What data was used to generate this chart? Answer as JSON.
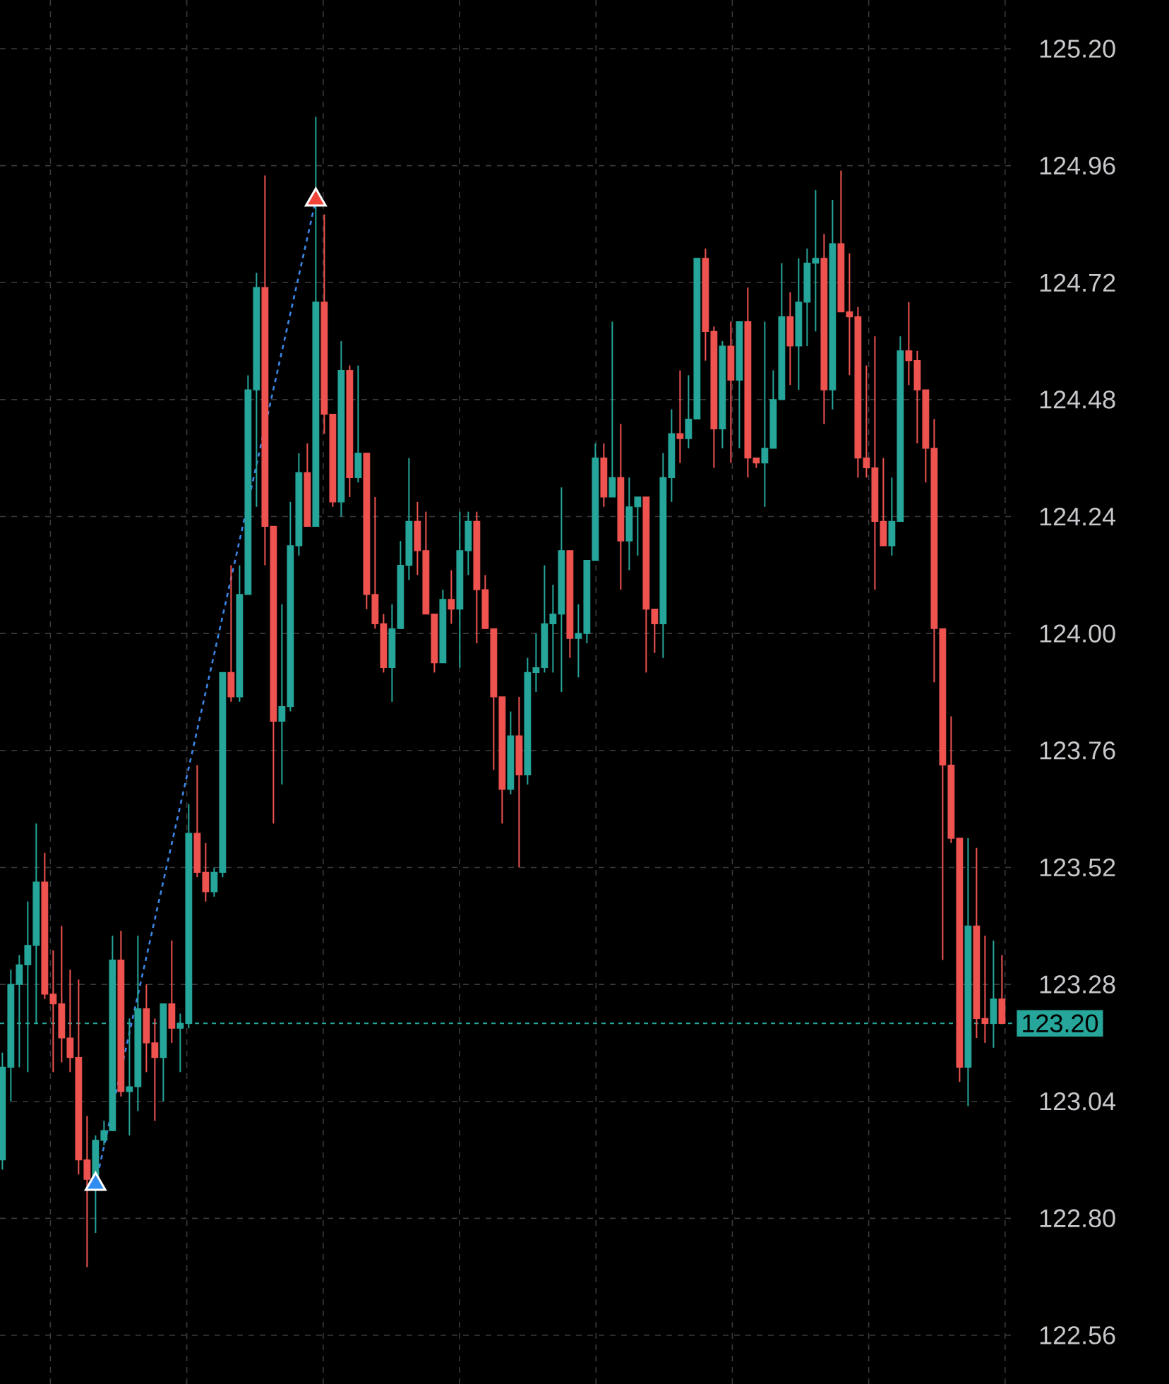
{
  "chart_data": {
    "type": "candlestick",
    "categories": [
      null,
      null,
      null,
      null,
      null,
      null,
      null,
      null,
      null,
      null,
      null,
      null,
      null,
      null,
      null,
      null,
      null,
      null,
      null,
      null,
      null,
      null,
      null,
      null,
      null,
      null,
      null,
      null,
      null,
      null,
      null,
      null,
      null,
      null,
      null,
      null,
      null,
      null,
      null,
      null,
      null,
      null,
      null,
      null,
      null,
      null,
      null,
      null,
      null,
      null,
      null,
      null,
      null,
      null,
      null,
      null,
      null,
      null,
      null,
      null,
      null,
      null,
      null,
      null,
      null,
      null,
      null,
      null,
      null,
      null,
      null,
      null,
      null,
      null,
      null,
      null,
      null,
      null,
      null,
      null,
      null,
      null,
      null,
      null,
      null,
      null,
      null,
      null,
      null,
      null,
      null,
      null,
      null,
      null,
      null,
      null,
      null,
      null,
      null,
      null,
      null,
      null,
      null,
      null,
      null,
      null,
      null,
      null,
      null,
      null,
      null,
      null,
      null,
      null,
      null,
      null,
      null,
      null,
      null
    ],
    "ohlc": [
      [
        122.92,
        123.14,
        122.9,
        123.11
      ],
      [
        123.11,
        123.31,
        123.04,
        123.28
      ],
      [
        123.28,
        123.34,
        123.11,
        123.32
      ],
      [
        123.32,
        123.45,
        123.1,
        123.36
      ],
      [
        123.36,
        123.61,
        123.2,
        123.49
      ],
      [
        123.49,
        123.55,
        123.25,
        123.26
      ],
      [
        123.26,
        123.35,
        123.1,
        123.24
      ],
      [
        123.24,
        123.4,
        123.12,
        123.17
      ],
      [
        123.17,
        123.31,
        123.1,
        123.13
      ],
      [
        123.13,
        123.29,
        122.89,
        122.92
      ],
      [
        122.92,
        123.01,
        122.7,
        122.88
      ],
      [
        122.88,
        122.97,
        122.77,
        122.96
      ],
      [
        122.96,
        123.0,
        122.95,
        122.98
      ],
      [
        122.98,
        123.38,
        122.98,
        123.33
      ],
      [
        123.33,
        123.39,
        123.05,
        123.06
      ],
      [
        123.06,
        123.21,
        122.97,
        123.07
      ],
      [
        123.07,
        123.38,
        123.02,
        123.23
      ],
      [
        123.23,
        123.28,
        123.1,
        123.16
      ],
      [
        123.16,
        123.21,
        123.0,
        123.13
      ],
      [
        123.13,
        123.24,
        123.04,
        123.24
      ],
      [
        123.24,
        123.37,
        123.16,
        123.19
      ],
      [
        123.19,
        123.22,
        123.1,
        123.2
      ],
      [
        123.2,
        123.65,
        123.19,
        123.59
      ],
      [
        123.59,
        123.73,
        123.5,
        123.51
      ],
      [
        123.51,
        123.57,
        123.45,
        123.47
      ],
      [
        123.47,
        123.52,
        123.46,
        123.51
      ],
      [
        123.51,
        123.92,
        123.5,
        123.92
      ],
      [
        123.92,
        124.14,
        123.86,
        123.87
      ],
      [
        123.87,
        124.14,
        123.86,
        124.08
      ],
      [
        124.08,
        124.53,
        124.08,
        124.5
      ],
      [
        124.5,
        124.74,
        124.26,
        124.71
      ],
      [
        124.71,
        124.94,
        124.14,
        124.22
      ],
      [
        124.22,
        124.22,
        123.61,
        123.82
      ],
      [
        123.82,
        124.06,
        123.69,
        123.85
      ],
      [
        123.85,
        124.27,
        123.84,
        124.18
      ],
      [
        124.18,
        124.37,
        124.16,
        124.33
      ],
      [
        124.33,
        124.39,
        124.22,
        124.22
      ],
      [
        124.22,
        125.06,
        124.22,
        124.68
      ],
      [
        124.68,
        124.86,
        124.41,
        124.45
      ],
      [
        124.45,
        124.45,
        124.26,
        124.27
      ],
      [
        124.27,
        124.6,
        124.24,
        124.54
      ],
      [
        124.54,
        124.55,
        124.28,
        124.32
      ],
      [
        124.32,
        124.55,
        124.31,
        124.37
      ],
      [
        124.37,
        124.37,
        124.05,
        124.08
      ],
      [
        124.08,
        124.28,
        124.01,
        124.02
      ],
      [
        124.02,
        124.04,
        123.92,
        123.93
      ],
      [
        123.93,
        124.06,
        123.86,
        124.01
      ],
      [
        124.01,
        124.19,
        124.01,
        124.14
      ],
      [
        124.14,
        124.36,
        124.11,
        124.23
      ],
      [
        124.23,
        124.27,
        124.12,
        124.17
      ],
      [
        124.17,
        124.25,
        124.04,
        124.04
      ],
      [
        124.04,
        124.04,
        123.92,
        123.94
      ],
      [
        123.94,
        124.09,
        123.94,
        124.07
      ],
      [
        124.07,
        124.13,
        124.02,
        124.05
      ],
      [
        124.05,
        124.25,
        123.93,
        124.17
      ],
      [
        124.17,
        124.25,
        124.12,
        124.23
      ],
      [
        124.23,
        124.25,
        123.98,
        124.09
      ],
      [
        124.09,
        124.12,
        124.01,
        124.01
      ],
      [
        124.01,
        124.01,
        123.72,
        123.87
      ],
      [
        123.87,
        123.87,
        123.61,
        123.68
      ],
      [
        123.68,
        123.84,
        123.67,
        123.79
      ],
      [
        123.79,
        123.87,
        123.52,
        123.71
      ],
      [
        123.71,
        123.95,
        123.69,
        123.92
      ],
      [
        123.92,
        124.0,
        123.88,
        123.93
      ],
      [
        123.93,
        124.14,
        123.92,
        124.02
      ],
      [
        124.02,
        124.1,
        123.92,
        124.04
      ],
      [
        124.04,
        124.3,
        123.88,
        124.17
      ],
      [
        124.17,
        124.17,
        123.95,
        123.99
      ],
      [
        123.99,
        124.06,
        123.91,
        124.0
      ],
      [
        124.0,
        124.15,
        123.98,
        124.15
      ],
      [
        124.15,
        124.39,
        124.15,
        124.36
      ],
      [
        124.36,
        124.39,
        124.26,
        124.28
      ],
      [
        124.28,
        124.64,
        124.28,
        124.32
      ],
      [
        124.32,
        124.43,
        124.09,
        124.19
      ],
      [
        124.19,
        124.32,
        124.13,
        124.26
      ],
      [
        124.26,
        124.28,
        124.16,
        124.28
      ],
      [
        124.28,
        124.28,
        123.92,
        124.05
      ],
      [
        124.05,
        124.05,
        123.96,
        124.02
      ],
      [
        124.02,
        124.37,
        123.95,
        124.32
      ],
      [
        124.32,
        124.46,
        124.27,
        124.41
      ],
      [
        124.41,
        124.54,
        124.35,
        124.4
      ],
      [
        124.4,
        124.53,
        124.38,
        124.44
      ],
      [
        124.44,
        124.77,
        124.44,
        124.77
      ],
      [
        124.77,
        124.79,
        124.56,
        124.62
      ],
      [
        124.62,
        124.63,
        124.34,
        124.42
      ],
      [
        124.42,
        124.6,
        124.38,
        124.59
      ],
      [
        124.59,
        124.64,
        124.35,
        124.52
      ],
      [
        124.52,
        124.64,
        124.38,
        124.64
      ],
      [
        124.64,
        124.71,
        124.32,
        124.36
      ],
      [
        124.36,
        124.36,
        124.34,
        124.35
      ],
      [
        124.35,
        124.64,
        124.26,
        124.38
      ],
      [
        124.38,
        124.54,
        124.38,
        124.48
      ],
      [
        124.48,
        124.76,
        124.48,
        124.65
      ],
      [
        124.65,
        124.7,
        124.51,
        124.59
      ],
      [
        124.59,
        124.77,
        124.5,
        124.68
      ],
      [
        124.68,
        124.79,
        124.59,
        124.76
      ],
      [
        124.76,
        124.91,
        124.62,
        124.77
      ],
      [
        124.77,
        124.82,
        124.43,
        124.5
      ],
      [
        124.5,
        124.89,
        124.46,
        124.8
      ],
      [
        124.8,
        124.95,
        124.66,
        124.66
      ],
      [
        124.66,
        124.78,
        124.53,
        124.65
      ],
      [
        124.65,
        124.67,
        124.32,
        124.36
      ],
      [
        124.36,
        124.55,
        124.32,
        124.34
      ],
      [
        124.34,
        124.61,
        124.09,
        124.23
      ],
      [
        124.23,
        124.36,
        124.18,
        124.18
      ],
      [
        124.18,
        124.32,
        124.16,
        124.23
      ],
      [
        124.23,
        124.61,
        124.23,
        124.58
      ],
      [
        124.58,
        124.68,
        124.51,
        124.56
      ],
      [
        124.56,
        124.58,
        124.39,
        124.5
      ],
      [
        124.5,
        124.5,
        124.31,
        124.38
      ],
      [
        124.38,
        124.44,
        123.9,
        124.01
      ],
      [
        124.01,
        124.01,
        123.33,
        123.73
      ],
      [
        123.73,
        123.83,
        123.57,
        123.58
      ],
      [
        123.58,
        123.58,
        123.08,
        123.11
      ],
      [
        123.11,
        123.58,
        123.03,
        123.4
      ],
      [
        123.4,
        123.56,
        123.17,
        123.21
      ],
      [
        123.21,
        123.38,
        123.16,
        123.2
      ],
      [
        123.2,
        123.37,
        123.15,
        123.25
      ],
      [
        123.25,
        123.34,
        123.2,
        123.2
      ]
    ],
    "colors": [
      "#26a69a",
      "#26a69a",
      "#26a69a",
      "#26a69a",
      "#26a69a",
      "#ef5350",
      "#ef5350",
      "#ef5350",
      "#ef5350",
      "#ef5350",
      "#ef5350",
      "#26a69a",
      "#26a69a",
      "#26a69a",
      "#ef5350",
      "#26a69a",
      "#26a69a",
      "#ef5350",
      "#ef5350",
      "#26a69a",
      "#ef5350",
      "#26a69a",
      "#26a69a",
      "#ef5350",
      "#ef5350",
      "#26a69a",
      "#26a69a",
      "#ef5350",
      "#26a69a",
      "#26a69a",
      "#26a69a",
      "#ef5350",
      "#ef5350",
      "#26a69a",
      "#26a69a",
      "#26a69a",
      "#ef5350",
      "#26a69a",
      "#ef5350",
      "#ef5350",
      "#26a69a",
      "#ef5350",
      "#26a69a",
      "#ef5350",
      "#ef5350",
      "#ef5350",
      "#26a69a",
      "#26a69a",
      "#26a69a",
      "#ef5350",
      "#ef5350",
      "#ef5350",
      "#26a69a",
      "#ef5350",
      "#26a69a",
      "#26a69a",
      "#ef5350",
      "#ef5350",
      "#ef5350",
      "#ef5350",
      "#26a69a",
      "#ef5350",
      "#26a69a",
      "#26a69a",
      "#26a69a",
      "#26a69a",
      "#26a69a",
      "#ef5350",
      "#26a69a",
      "#26a69a",
      "#26a69a",
      "#ef5350",
      "#26a69a",
      "#ef5350",
      "#26a69a",
      "#26a69a",
      "#ef5350",
      "#ef5350",
      "#26a69a",
      "#26a69a",
      "#ef5350",
      "#26a69a",
      "#26a69a",
      "#ef5350",
      "#ef5350",
      "#26a69a",
      "#ef5350",
      "#26a69a",
      "#ef5350",
      "#ef5350",
      "#26a69a",
      "#26a69a",
      "#26a69a",
      "#ef5350",
      "#26a69a",
      "#26a69a",
      "#26a69a",
      "#ef5350",
      "#26a69a",
      "#ef5350",
      "#ef5350",
      "#ef5350",
      "#ef5350",
      "#ef5350",
      "#ef5350",
      "#26a69a",
      "#26a69a",
      "#ef5350",
      "#ef5350",
      "#ef5350",
      "#ef5350",
      "#ef5350",
      "#ef5350",
      "#ef5350",
      "#26a69a",
      "#ef5350",
      "#ef5350",
      "#26a69a",
      "#ef5350"
    ],
    "series": [
      {
        "type": "line",
        "values": [
          null,
          null,
          null,
          null,
          null,
          null,
          null,
          null,
          null,
          null,
          null,
          122.87,
          null,
          null,
          null,
          null,
          null,
          null,
          null,
          null,
          null,
          null,
          null,
          null,
          null,
          null,
          null,
          null,
          null,
          null,
          null,
          null,
          null,
          null,
          null,
          null,
          null,
          124.89,
          null,
          null,
          null,
          null,
          null,
          null,
          null,
          null,
          null,
          null,
          null,
          null,
          null,
          null,
          null,
          null,
          null,
          null,
          null,
          null,
          null,
          null,
          null,
          null,
          null,
          null,
          null,
          null,
          null,
          null,
          null,
          null,
          null,
          null,
          null,
          null,
          null,
          null,
          null,
          null,
          null,
          null,
          null,
          null,
          null,
          null,
          null,
          null,
          null,
          null,
          null,
          null,
          null,
          null,
          null,
          null,
          null,
          null,
          null,
          null,
          null,
          null,
          null,
          null,
          null,
          null,
          null,
          null,
          null,
          null,
          null,
          null,
          null,
          null,
          null,
          null,
          null,
          null,
          null,
          null,
          null
        ],
        "color": "#3d86e6",
        "line_style": "dashed"
      },
      {
        "type": "scatter",
        "values": [
          null,
          null,
          null,
          null,
          null,
          null,
          null,
          null,
          null,
          null,
          null,
          122.87,
          null,
          null,
          null,
          null,
          null,
          null,
          null,
          null,
          null,
          null,
          null,
          null,
          null,
          null,
          null,
          null,
          null,
          null,
          null,
          null,
          null,
          null,
          null,
          null,
          null,
          null,
          null,
          null,
          null,
          null,
          null,
          null,
          null,
          null,
          null,
          null,
          null,
          null,
          null,
          null,
          null,
          null,
          null,
          null,
          null,
          null,
          null,
          null,
          null,
          null,
          null,
          null,
          null,
          null,
          null,
          null,
          null,
          null,
          null,
          null,
          null,
          null,
          null,
          null,
          null,
          null,
          null,
          null,
          null,
          null,
          null,
          null,
          null,
          null,
          null,
          null,
          null,
          null,
          null,
          null,
          null,
          null,
          null,
          null,
          null,
          null,
          null,
          null,
          null,
          null,
          null,
          null,
          null,
          null,
          null,
          null,
          null,
          null,
          null,
          null,
          null,
          null,
          null,
          null,
          null,
          null,
          null
        ],
        "color": "#2f8cf0",
        "marker": "triangle"
      },
      {
        "type": "scatter",
        "values": [
          null,
          null,
          null,
          null,
          null,
          null,
          null,
          null,
          null,
          null,
          null,
          null,
          null,
          null,
          null,
          null,
          null,
          null,
          null,
          null,
          null,
          null,
          null,
          null,
          null,
          null,
          null,
          null,
          null,
          null,
          null,
          null,
          null,
          null,
          null,
          null,
          null,
          124.89,
          null,
          null,
          null,
          null,
          null,
          null,
          null,
          null,
          null,
          null,
          null,
          null,
          null,
          null,
          null,
          null,
          null,
          null,
          null,
          null,
          null,
          null,
          null,
          null,
          null,
          null,
          null,
          null,
          null,
          null,
          null,
          null,
          null,
          null,
          null,
          null,
          null,
          null,
          null,
          null,
          null,
          null,
          null,
          null,
          null,
          null,
          null,
          null,
          null,
          null,
          null,
          null,
          null,
          null,
          null,
          null,
          null,
          null,
          null,
          null,
          null,
          null,
          null,
          null,
          null,
          null,
          null,
          null,
          null,
          null,
          null,
          null,
          null,
          null,
          null,
          null,
          null,
          null,
          null,
          null,
          null
        ],
        "color": "#f0433a",
        "marker": "triangle"
      }
    ],
    "ylim": [
      122.46,
      125.3
    ],
    "yticks": [
      {
        "value": 122.56,
        "label": "122.56"
      },
      {
        "value": 122.8,
        "label": "122.80"
      },
      {
        "value": 123.04,
        "label": "123.04"
      },
      {
        "value": 123.28,
        "label": "123.28"
      },
      {
        "value": 123.52,
        "label": "123.52"
      },
      {
        "value": 123.76,
        "label": "123.76"
      },
      {
        "value": 124.0,
        "label": "124.00"
      },
      {
        "value": 124.24,
        "label": "124.24"
      },
      {
        "value": 124.48,
        "label": "124.48"
      },
      {
        "value": 124.72,
        "label": "124.72"
      },
      {
        "value": 124.96,
        "label": "124.96"
      },
      {
        "value": 125.2,
        "label": "125.20"
      }
    ],
    "ref_lines": [
      {
        "axis": "y",
        "value": 123.2,
        "label": "123.20",
        "color": "#26a69a",
        "line_style": "dashed"
      }
    ],
    "grid": true,
    "tick_labels": "y"
  }
}
